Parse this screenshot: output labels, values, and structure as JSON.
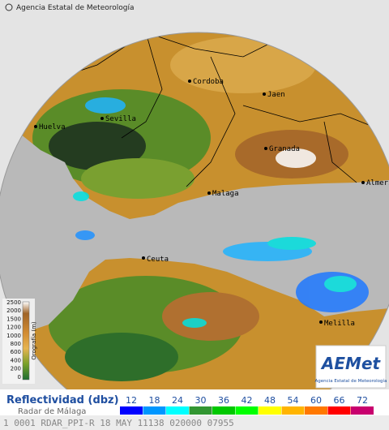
{
  "header": {
    "credit": "Agencia Estatal de Meteorología"
  },
  "cities": [
    {
      "label": "Cordoba"
    },
    {
      "label": "Jaen"
    },
    {
      "label": "Huelva"
    },
    {
      "label": "Sevilla"
    },
    {
      "label": "Granada"
    },
    {
      "label": "Malaga"
    },
    {
      "label": "Almeria"
    },
    {
      "label": "Ceuta"
    },
    {
      "label": "Melilla"
    }
  ],
  "orography": {
    "title": "Orografía (m)",
    "levels": [
      2500,
      2000,
      1500,
      1200,
      1000,
      800,
      600,
      400,
      200,
      0
    ]
  },
  "reflectivity": {
    "title": "Reflectividad (dbz)",
    "radar": "Radar de Málaga",
    "levels": [
      12,
      18,
      24,
      30,
      36,
      42,
      48,
      54,
      60,
      66,
      72
    ],
    "colors": [
      "#0000ff",
      "#0096ff",
      "#00ffff",
      "#329632",
      "#00c800",
      "#00ff00",
      "#ffff00",
      "#ffb400",
      "#ff7800",
      "#ff0000",
      "#c8006e"
    ]
  },
  "logo": {
    "name": "AEMet",
    "caption": "Agencia Estatal de Meteorología"
  },
  "status_bar": {
    "text": "1 0001 RDAR_PPI-R 18 MAY 11138 020000 07955"
  }
}
